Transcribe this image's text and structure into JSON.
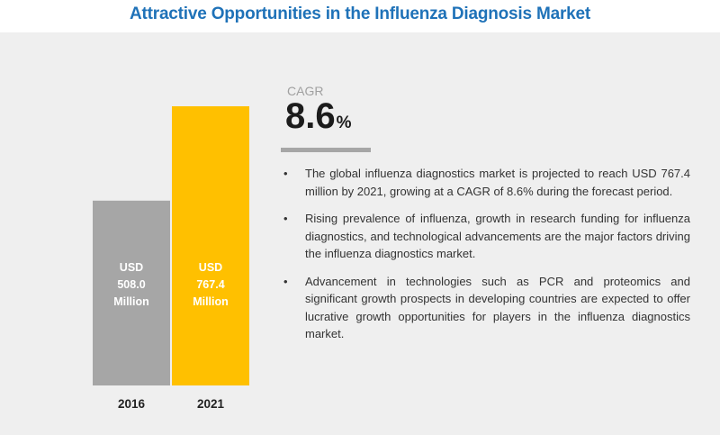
{
  "title": "Attractive Opportunities in the Influenza Diagnosis Market",
  "colors": {
    "title": "#1f72b8",
    "bar_2016": "#a6a6a6",
    "bar_2021": "#ffc000",
    "panel": "#efefef"
  },
  "chart_data": {
    "type": "bar",
    "categories": [
      "2016",
      "2021"
    ],
    "values": [
      508.0,
      767.4
    ],
    "unit": "USD Million",
    "data_labels": [
      [
        "USD",
        "508.0",
        "Million"
      ],
      [
        "USD",
        "767.4",
        "Million"
      ]
    ],
    "colors": [
      "#a6a6a6",
      "#ffc000"
    ],
    "ylim": [
      0,
      767.4
    ],
    "grid": false,
    "legend": "none"
  },
  "cagr": {
    "label": "CAGR",
    "value": "8.6",
    "unit": "%"
  },
  "bullets": [
    "The global influenza diagnostics market is projected to reach USD 767.4 million by 2021, growing at a CAGR of 8.6% during the forecast period.",
    "Rising prevalence of influenza, growth in research funding for influenza diagnostics, and technological advancements are the major factors driving the influenza diagnostics market.",
    "Advancement in technologies such as PCR and proteomics and significant growth prospects in developing countries are expected to offer lucrative growth opportunities for players in the influenza diagnostics market."
  ]
}
